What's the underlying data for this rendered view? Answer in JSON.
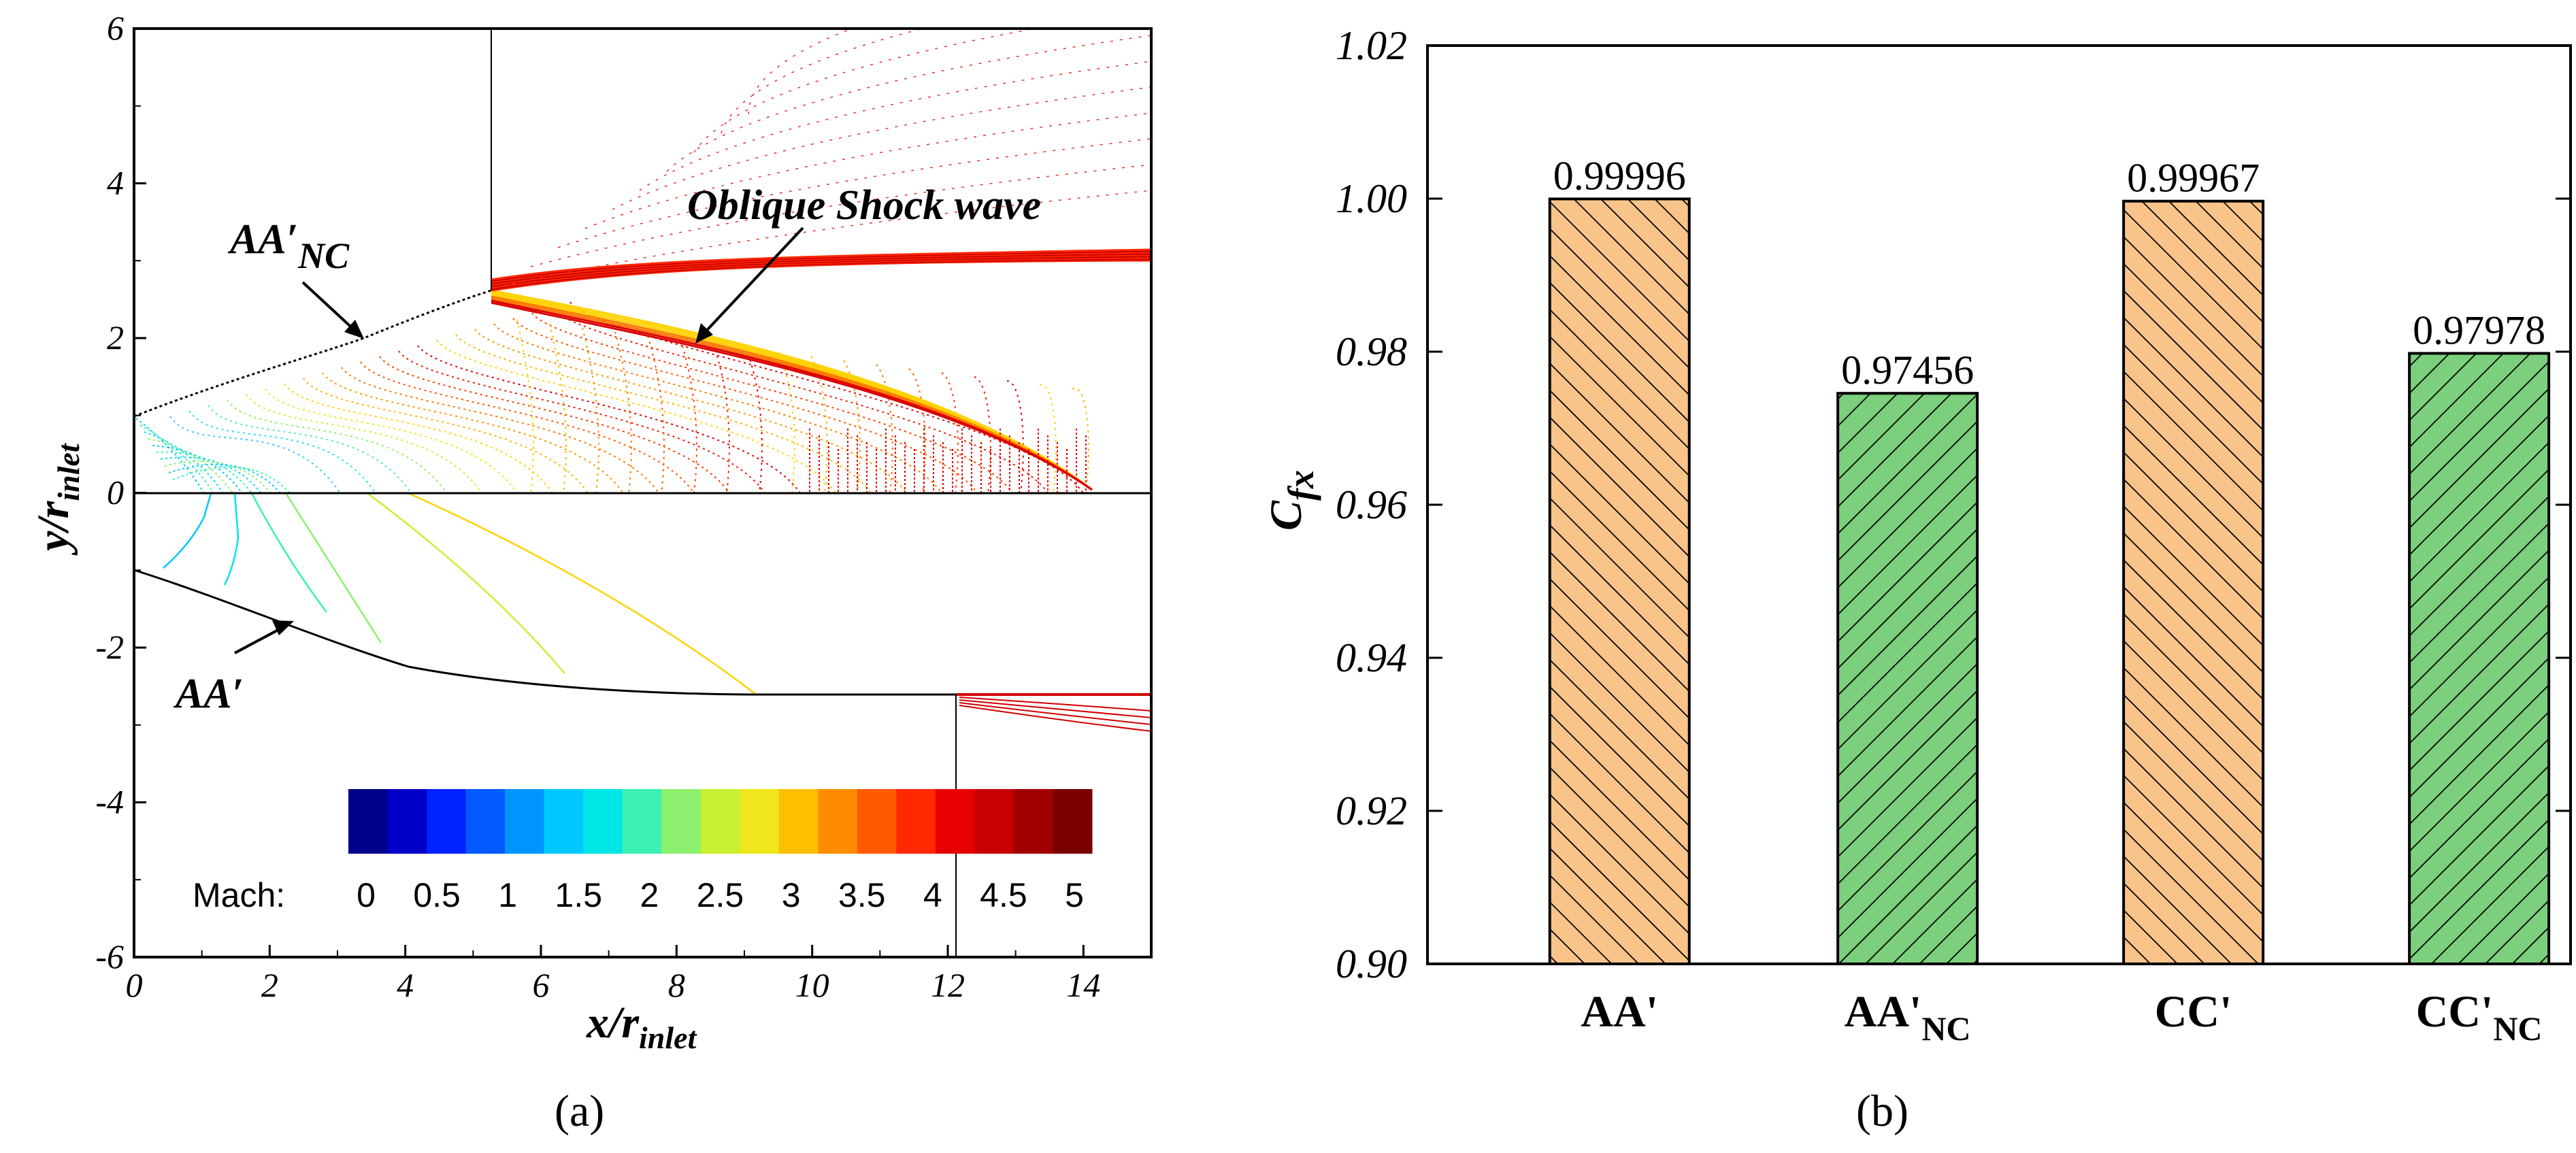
{
  "panel_a": {
    "label": "(a)",
    "x_title": "x/r",
    "x_title_sub": "inlet",
    "y_title": "y/r",
    "y_title_sub": "inlet",
    "annotation_shock": "Oblique Shock wave",
    "annotation_aanc_main": "AA′",
    "annotation_aanc_sub": "NC",
    "annotation_aa": "AA′",
    "legend_title": "Mach:",
    "legend_ticks": [
      "0",
      "0.5",
      "1",
      "1.5",
      "2",
      "2.5",
      "3",
      "3.5",
      "4",
      "4.5",
      "5"
    ],
    "legend_colors": [
      "#00008b",
      "#0000c8",
      "#0022ff",
      "#005aff",
      "#0096ff",
      "#00c8ff",
      "#00e6e6",
      "#3cf0b4",
      "#8cf06e",
      "#c8f032",
      "#f0e61e",
      "#ffbe00",
      "#ff8c00",
      "#ff5a00",
      "#ff2800",
      "#e60000",
      "#c80000",
      "#a00000",
      "#7a0000"
    ],
    "x_ticks": [
      "0",
      "2",
      "4",
      "6",
      "8",
      "10",
      "12",
      "14"
    ],
    "y_ticks": [
      "6",
      "4",
      "2",
      "0",
      "-2",
      "-4",
      "-6"
    ]
  },
  "chart_data": {
    "type": "bar",
    "categories": [
      "AA'",
      "AA'NC",
      "CC'",
      "CC'NC"
    ],
    "category_main": [
      "AA'",
      "AA'",
      "CC'",
      "CC'"
    ],
    "category_sub": [
      "",
      "NC",
      "",
      "NC"
    ],
    "values": [
      0.99996,
      0.97456,
      0.99967,
      0.97978
    ],
    "value_labels": [
      "0.99996",
      "0.97456",
      "0.99967",
      "0.97978"
    ],
    "colors": [
      "#f8c48a",
      "#7ccf7c",
      "#f8c48a",
      "#7ccf7c"
    ],
    "ylabel": "C",
    "ylabel_sub": "fx",
    "ylim": [
      0.9,
      1.02
    ],
    "y_ticks": [
      "1.02",
      "1.00",
      "0.98",
      "0.96",
      "0.94",
      "0.92",
      "0.90"
    ],
    "title": "",
    "xlabel": ""
  },
  "panel_b": {
    "label": "(b)"
  }
}
